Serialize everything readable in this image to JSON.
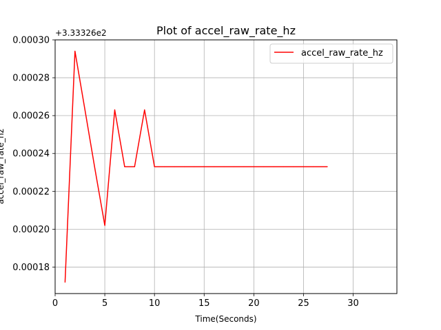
{
  "chart_data": {
    "type": "line",
    "title": "Plot of accel_raw_rate_hz",
    "xlabel": "Time(Seconds)",
    "ylabel": "accel_raw_rate_hz",
    "offset_label": "+3.33326e2",
    "xlim": [
      0,
      34.4
    ],
    "ylim": [
      0.000166,
      0.0003
    ],
    "x_ticks": [
      0,
      5,
      10,
      15,
      20,
      25,
      30
    ],
    "x_tick_labels": [
      "0",
      "5",
      "10",
      "15",
      "20",
      "25",
      "30"
    ],
    "y_ticks": [
      0.00018,
      0.0002,
      0.00022,
      0.00024,
      0.00026,
      0.00028,
      0.0003
    ],
    "y_tick_labels": [
      "0.00018",
      "0.00020",
      "0.00022",
      "0.00024",
      "0.00026",
      "0.00028",
      "0.00030"
    ],
    "grid": true,
    "legend_position": "top-right",
    "series": [
      {
        "name": "accel_raw_rate_hz",
        "color": "#ff0000",
        "x": [
          1,
          2,
          3,
          4,
          5,
          6,
          7,
          8,
          9,
          10,
          11,
          12,
          13,
          14,
          15,
          16,
          17,
          18,
          19,
          20,
          21,
          22,
          23,
          24,
          25,
          26,
          27.4
        ],
        "y": [
          0.000172,
          0.000294,
          0.000263,
          0.000232,
          0.000202,
          0.000263,
          0.000233,
          0.000233,
          0.000263,
          0.000233,
          0.000233,
          0.000233,
          0.000233,
          0.000233,
          0.000233,
          0.000233,
          0.000233,
          0.000233,
          0.000233,
          0.000233,
          0.000233,
          0.000233,
          0.000233,
          0.000233,
          0.000233,
          0.000233,
          0.000233
        ]
      }
    ]
  }
}
